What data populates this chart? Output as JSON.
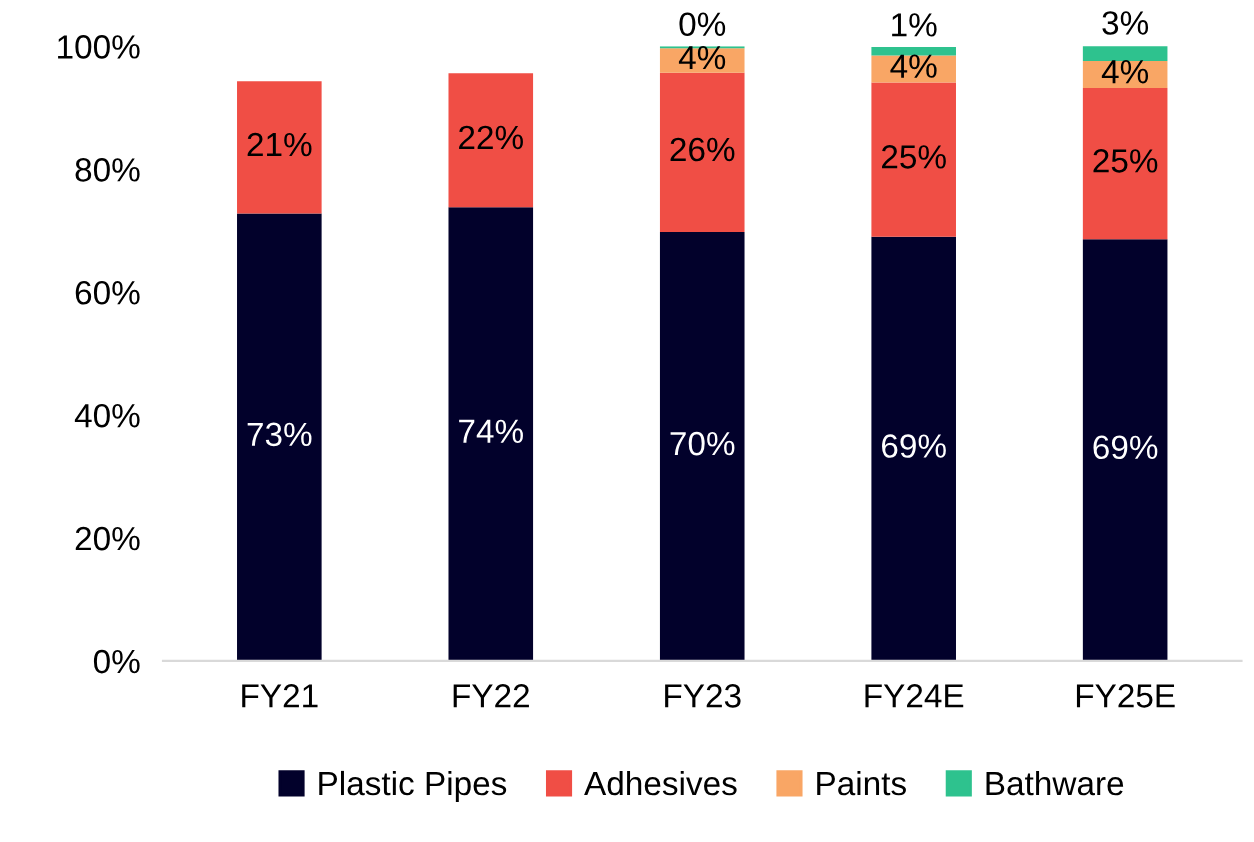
{
  "chart_data": {
    "type": "bar",
    "stacked": true,
    "categories": [
      "FY21",
      "FY22",
      "FY23",
      "FY24E",
      "FY25E"
    ],
    "series": [
      {
        "name": "Plastic Pipes",
        "color": "#02012b",
        "values": [
          72.8,
          73.8,
          69.8,
          69.0,
          68.6
        ],
        "value_labels": [
          "73%",
          "74%",
          "70%",
          "69%",
          "69%"
        ]
      },
      {
        "name": "Adhesives",
        "color": "#f04e45",
        "values": [
          21.5,
          21.8,
          25.9,
          25.1,
          24.6
        ],
        "value_labels": [
          "21%",
          "22%",
          "26%",
          "25%",
          "25%"
        ]
      },
      {
        "name": "Paints",
        "color": "#f9a665",
        "values": [
          0,
          0,
          4.0,
          4.4,
          4.4
        ],
        "value_labels": [
          null,
          null,
          "4%",
          "4%",
          "4%"
        ]
      },
      {
        "name": "Bathware",
        "color": "#2ec28e",
        "values": [
          0,
          0,
          0.3,
          1.4,
          2.6
        ],
        "value_labels": [
          null,
          null,
          "0%",
          "1%",
          "3%"
        ]
      }
    ],
    "ylim": [
      0,
      100
    ],
    "yticks": [
      {
        "value": 0,
        "label": "0%"
      },
      {
        "value": 20,
        "label": "20%"
      },
      {
        "value": 40,
        "label": "40%"
      },
      {
        "value": 60,
        "label": "60%"
      },
      {
        "value": 80,
        "label": "80%"
      },
      {
        "value": 100,
        "label": "100%"
      }
    ],
    "legend": "bottom",
    "grid": false
  }
}
